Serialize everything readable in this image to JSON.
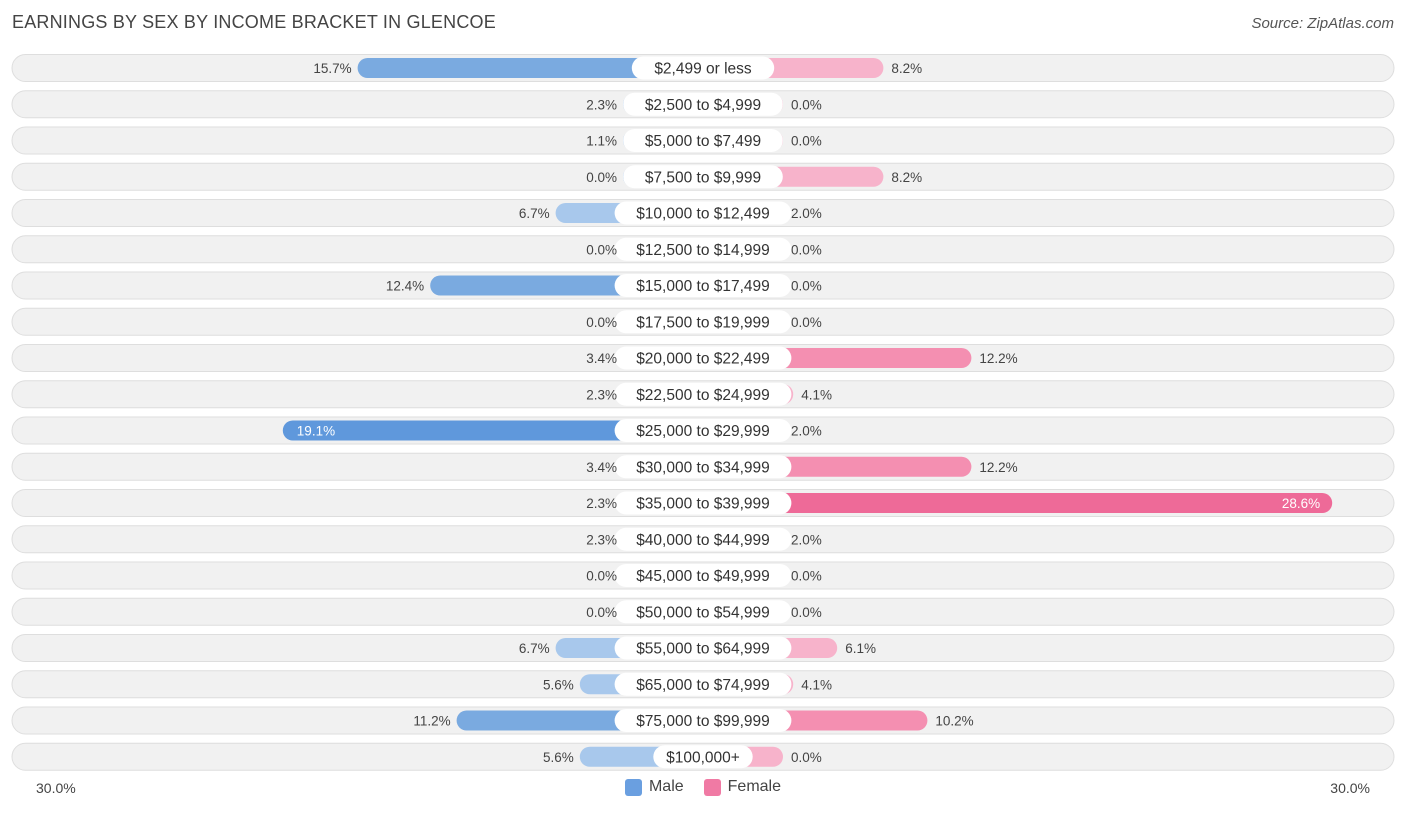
{
  "header": {
    "title": "EARNINGS BY SEX BY INCOME BRACKET IN GLENCOE",
    "source": "Source: ZipAtlas.com"
  },
  "colors": {
    "male": "#7aaae0",
    "male_light": "#a8c8ec",
    "male_strong": "#5f98dc",
    "female": "#f48fb1",
    "female_light": "#f7b3cb",
    "female_strong": "#ee6a98",
    "row_bg": "#f1f1f1",
    "row_border": "#dedede"
  },
  "chart_data": {
    "type": "bar",
    "orientation": "horizontal-diverging",
    "title": "EARNINGS BY SEX BY INCOME BRACKET IN GLENCOE",
    "xlim": [
      -30,
      30
    ],
    "axis_min_label": "30.0%",
    "axis_max_label": "30.0%",
    "categories": [
      "$2,499 or less",
      "$2,500 to $4,999",
      "$5,000 to $7,499",
      "$7,500 to $9,999",
      "$10,000 to $12,499",
      "$12,500 to $14,999",
      "$15,000 to $17,499",
      "$17,500 to $19,999",
      "$20,000 to $22,499",
      "$22,500 to $24,999",
      "$25,000 to $29,999",
      "$30,000 to $34,999",
      "$35,000 to $39,999",
      "$40,000 to $44,999",
      "$45,000 to $49,999",
      "$50,000 to $54,999",
      "$55,000 to $64,999",
      "$65,000 to $74,999",
      "$75,000 to $99,999",
      "$100,000+"
    ],
    "series": [
      {
        "name": "Male",
        "values": [
          15.7,
          2.3,
          1.1,
          0.0,
          6.7,
          0.0,
          12.4,
          0.0,
          3.4,
          2.3,
          19.1,
          3.4,
          2.3,
          2.3,
          0.0,
          0.0,
          6.7,
          5.6,
          11.2,
          5.6
        ],
        "labels": [
          "15.7%",
          "2.3%",
          "1.1%",
          "0.0%",
          "6.7%",
          "0.0%",
          "12.4%",
          "0.0%",
          "3.4%",
          "2.3%",
          "19.1%",
          "3.4%",
          "2.3%",
          "2.3%",
          "0.0%",
          "0.0%",
          "6.7%",
          "5.6%",
          "11.2%",
          "5.6%"
        ]
      },
      {
        "name": "Female",
        "values": [
          8.2,
          0.0,
          0.0,
          8.2,
          2.0,
          0.0,
          0.0,
          0.0,
          12.2,
          4.1,
          2.0,
          12.2,
          28.6,
          2.0,
          0.0,
          0.0,
          6.1,
          4.1,
          10.2,
          0.0
        ],
        "labels": [
          "8.2%",
          "0.0%",
          "0.0%",
          "8.2%",
          "2.0%",
          "0.0%",
          "0.0%",
          "0.0%",
          "12.2%",
          "4.1%",
          "2.0%",
          "12.2%",
          "28.6%",
          "2.0%",
          "0.0%",
          "0.0%",
          "6.1%",
          "4.1%",
          "10.2%",
          "0.0%"
        ]
      }
    ],
    "legend": [
      "Male",
      "Female"
    ]
  }
}
